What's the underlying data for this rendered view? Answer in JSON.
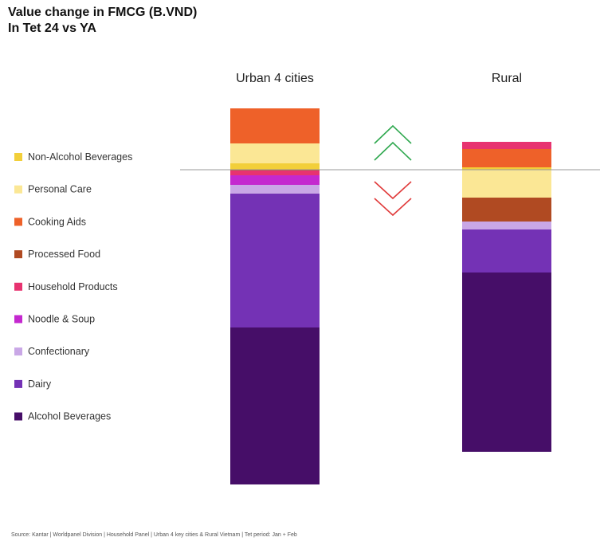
{
  "title_line1": "Value change in FMCG (B.VND)",
  "title_line2": "In Tet 24 vs YA",
  "source": "Source: Kantar | Worldpanel Division | Household Panel | Urban 4 key cities & Rural Vietnam | Tet period: Jan + Feb",
  "colors": {
    "baseline": "#9a9a9a",
    "up_arrow": "#2fa84f",
    "down_arrow": "#e03a3a"
  },
  "chart_data": {
    "type": "bar",
    "stacked": true,
    "diverging": true,
    "title": "Value change in FMCG (B.VND)",
    "subtitle": "In Tet 24 vs YA",
    "categories": [
      "Urban 4 cities",
      "Rural"
    ],
    "legend_position": "left",
    "grid": false,
    "ylim": [
      -392,
      78
    ],
    "series": [
      {
        "name": "Non-Alcohol Beverages",
        "color": "#f2cf3a",
        "values": [
          8,
          3
        ]
      },
      {
        "name": "Personal Care",
        "color": "#fbe795",
        "values": [
          25,
          -35
        ]
      },
      {
        "name": "Cooking Aids",
        "color": "#ee6129",
        "values": [
          44,
          23
        ]
      },
      {
        "name": "Processed Food",
        "color": "#b04a22",
        "values": [
          -1,
          -30
        ]
      },
      {
        "name": "Household Products",
        "color": "#e73370",
        "values": [
          -6,
          9
        ]
      },
      {
        "name": "Noodle & Soup",
        "color": "#c428cf",
        "values": [
          -12,
          0
        ]
      },
      {
        "name": "Confectionary",
        "color": "#c9a7e6",
        "values": [
          -11,
          -10
        ]
      },
      {
        "name": "Dairy",
        "color": "#7432b5",
        "values": [
          -168,
          -54
        ]
      },
      {
        "name": "Alcohol Beverages",
        "color": "#460e68",
        "values": [
          -197,
          -225
        ]
      }
    ]
  }
}
